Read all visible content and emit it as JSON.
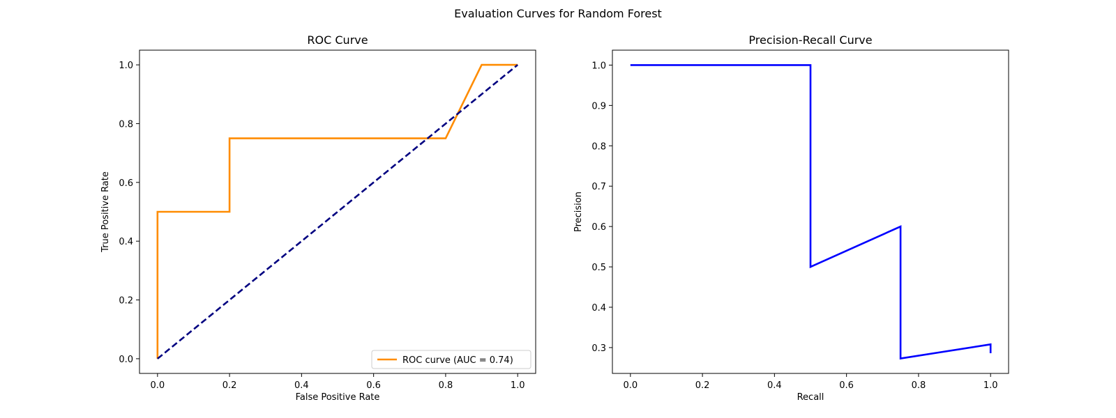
{
  "figure_title": "Evaluation Curves for Random Forest",
  "chart_data": [
    {
      "type": "line",
      "title": "ROC Curve",
      "xlabel": "False Positive Rate",
      "ylabel": "True Positive Rate",
      "xlim": [
        -0.05,
        1.05
      ],
      "ylim": [
        -0.05,
        1.05
      ],
      "xticks": [
        0.0,
        0.2,
        0.4,
        0.6,
        0.8,
        1.0
      ],
      "yticks": [
        0.0,
        0.2,
        0.4,
        0.6,
        0.8,
        1.0
      ],
      "xtick_labels": [
        "0.0",
        "0.2",
        "0.4",
        "0.6",
        "0.8",
        "1.0"
      ],
      "ytick_labels": [
        "0.0",
        "0.2",
        "0.4",
        "0.6",
        "0.8",
        "1.0"
      ],
      "grid": false,
      "legend": {
        "placement": "lower right"
      },
      "series": [
        {
          "name": "ROC curve (AUC = 0.74)",
          "color": "#ff8c00",
          "style": "solid",
          "x": [
            0.0,
            0.0,
            0.2,
            0.2,
            0.8,
            0.9,
            1.0
          ],
          "y": [
            0.0,
            0.5,
            0.5,
            0.75,
            0.75,
            1.0,
            1.0
          ]
        },
        {
          "color": "#000080",
          "style": "dashed",
          "x": [
            0.0,
            1.0
          ],
          "y": [
            0.0,
            1.0
          ]
        }
      ]
    },
    {
      "type": "line",
      "title": "Precision-Recall Curve",
      "xlabel": "Recall",
      "ylabel": "Precision",
      "xlim": [
        -0.05,
        1.05
      ],
      "ylim": [
        0.236,
        1.037
      ],
      "xticks": [
        0.0,
        0.2,
        0.4,
        0.6,
        0.8,
        1.0
      ],
      "yticks": [
        0.3,
        0.4,
        0.5,
        0.6,
        0.7,
        0.8,
        0.9,
        1.0
      ],
      "xtick_labels": [
        "0.0",
        "0.2",
        "0.4",
        "0.6",
        "0.8",
        "1.0"
      ],
      "ytick_labels": [
        "0.3",
        "0.4",
        "0.5",
        "0.6",
        "0.7",
        "0.8",
        "0.9",
        "1.0"
      ],
      "grid": false,
      "series": [
        {
          "color": "#0000ff",
          "style": "solid",
          "x": [
            0.0,
            0.5,
            0.5,
            0.75,
            0.75,
            1.0,
            1.0
          ],
          "y": [
            1.0,
            1.0,
            0.5,
            0.6,
            0.273,
            0.308,
            0.286
          ]
        }
      ]
    }
  ]
}
